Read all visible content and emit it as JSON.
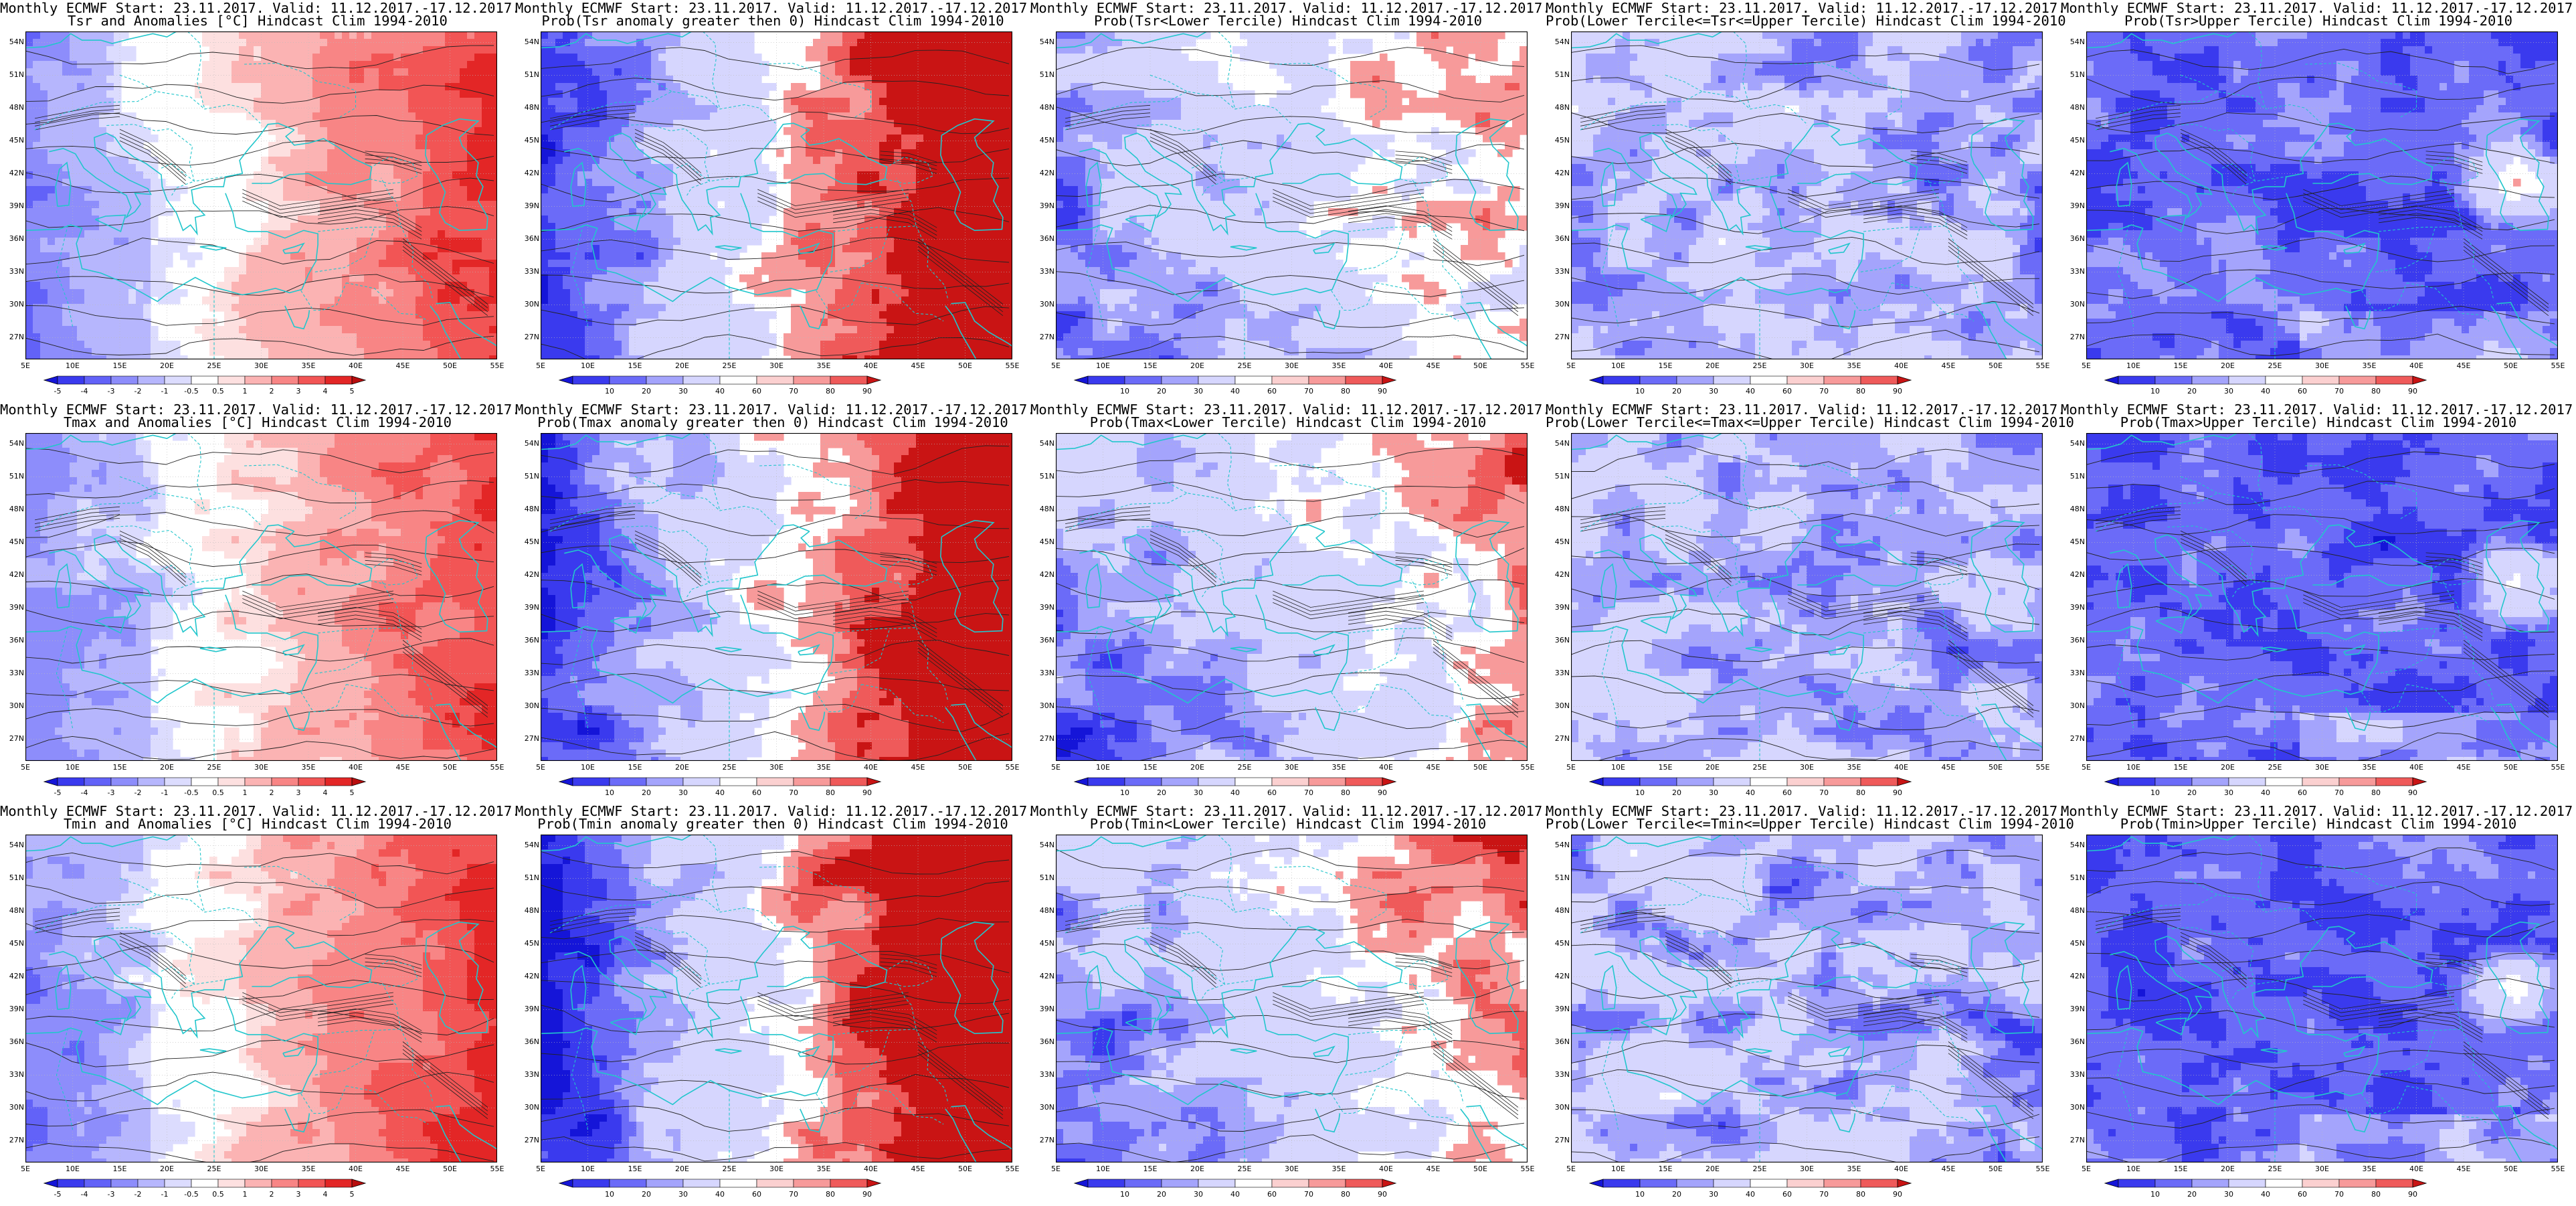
{
  "lat_labels": [
    "54N",
    "51N",
    "48N",
    "45N",
    "42N",
    "39N",
    "36N",
    "33N",
    "30N",
    "27N"
  ],
  "lon_labels": [
    "5E",
    "10E",
    "15E",
    "20E",
    "25E",
    "30E",
    "35E",
    "40E",
    "45E",
    "50E",
    "55E"
  ],
  "colorbars": {
    "anomaly": {
      "labels": [
        "-5",
        "-4",
        "-3",
        "-2",
        "-1",
        "-0.5",
        "0.5",
        "1",
        "2",
        "3",
        "4",
        "5"
      ],
      "colors": [
        "#1515d8",
        "#3a3aee",
        "#6262f8",
        "#8d8dfb",
        "#b6b6fd",
        "#dcdcfe",
        "#ffffff",
        "#fde0e0",
        "#fbb3b3",
        "#f88585",
        "#f25555",
        "#e32626",
        "#b80e0e"
      ]
    },
    "probability": {
      "labels": [
        "10",
        "20",
        "30",
        "40",
        "60",
        "70",
        "80",
        "90"
      ],
      "colors": [
        "#1515d8",
        "#3a3aee",
        "#6b6bf8",
        "#a4a4fc",
        "#d6d6fe",
        "#ffffff",
        "#fbd0d0",
        "#f79a9a",
        "#ef5a5a",
        "#c91414"
      ]
    }
  },
  "panels": [
    {
      "row": 0,
      "col": 0,
      "title1": "Monthly ECMWF Start: 23.11.2017. Valid: 11.12.2017.-17.12.2017.",
      "title2": "Tsr and Anomalies [°C] Hindcast Clim 1994-2010",
      "scheme": "anom",
      "intensity": 0.9,
      "colorbar": "anomaly"
    },
    {
      "row": 0,
      "col": 1,
      "title1": "Monthly ECMWF Start: 23.11.2017. Valid: 11.12.2017.-17.12.2017.",
      "title2": "Prob(Tsr anomaly greater then 0) Hindcast Clim 1994-2010",
      "scheme": "probpos",
      "intensity": 1.0,
      "colorbar": "probability"
    },
    {
      "row": 0,
      "col": 2,
      "title1": "Monthly ECMWF Start: 23.11.2017. Valid: 11.12.2017.-17.12.2017.",
      "title2": "Prob(Tsr<Lower Tercile) Hindcast Clim 1994-2010",
      "scheme": "lower",
      "intensity": 1.0,
      "colorbar": "probability"
    },
    {
      "row": 0,
      "col": 3,
      "title1": "Monthly ECMWF Start: 23.11.2017. Valid: 11.12.2017.-17.12.2017.",
      "title2": "Prob(Lower Tercile<=Tsr<=Upper Tercile) Hindcast Clim 1994-2010",
      "scheme": "middle",
      "intensity": 1.0,
      "colorbar": "probability"
    },
    {
      "row": 0,
      "col": 4,
      "title1": "Monthly ECMWF Start: 23.11.2017. Valid: 11.12.2017.-17.12.2017.",
      "title2": "Prob(Tsr>Upper Tercile) Hindcast Clim 1994-2010",
      "scheme": "upper",
      "intensity": 1.0,
      "colorbar": "probability"
    },
    {
      "row": 1,
      "col": 0,
      "title1": "Monthly ECMWF Start: 23.11.2017. Valid: 11.12.2017.-17.12.2017.",
      "title2": "Tmax and Anomalies [°C] Hindcast Clim 1994-2010",
      "scheme": "anom",
      "intensity": 0.85,
      "colorbar": "anomaly"
    },
    {
      "row": 1,
      "col": 1,
      "title1": "Monthly ECMWF Start: 23.11.2017. Valid: 11.12.2017.-17.12.2017.",
      "title2": "Prob(Tmax anomaly greater then 0) Hindcast Clim 1994-2010",
      "scheme": "probpos",
      "intensity": 0.95,
      "colorbar": "probability"
    },
    {
      "row": 1,
      "col": 2,
      "title1": "Monthly ECMWF Start: 23.11.2017. Valid: 11.12.2017.-17.12.2017.",
      "title2": "Prob(Tmax<Lower Tercile) Hindcast Clim 1994-2010",
      "scheme": "lower",
      "intensity": 1.05,
      "colorbar": "probability"
    },
    {
      "row": 1,
      "col": 3,
      "title1": "Monthly ECMWF Start: 23.11.2017. Valid: 11.12.2017.-17.12.2017.",
      "title2": "Prob(Lower Tercile<=Tmax<=Upper Tercile) Hindcast Clim 1994-2010",
      "scheme": "middle",
      "intensity": 0.9,
      "colorbar": "probability"
    },
    {
      "row": 1,
      "col": 4,
      "title1": "Monthly ECMWF Start: 23.11.2017. Valid: 11.12.2017.-17.12.2017.",
      "title2": "Prob(Tmax>Upper Tercile) Hindcast Clim 1994-2010",
      "scheme": "upper",
      "intensity": 0.9,
      "colorbar": "probability"
    },
    {
      "row": 2,
      "col": 0,
      "title1": "Monthly ECMWF Start: 23.11.2017. Valid: 11.12.2017.-17.12.2017.",
      "title2": "Tmin and Anomalies [°C] Hindcast Clim 1994-2010",
      "scheme": "anom",
      "intensity": 1.0,
      "colorbar": "anomaly"
    },
    {
      "row": 2,
      "col": 1,
      "title1": "Monthly ECMWF Start: 23.11.2017. Valid: 11.12.2017.-17.12.2017.",
      "title2": "Prob(Tmin anomaly greater then 0) Hindcast Clim 1994-2010",
      "scheme": "probpos",
      "intensity": 1.05,
      "colorbar": "probability"
    },
    {
      "row": 2,
      "col": 2,
      "title1": "Monthly ECMWF Start: 23.11.2017. Valid: 11.12.2017.-17.12.2017.",
      "title2": "Prob(Tmin<Lower Tercile) Hindcast Clim 1994-2010",
      "scheme": "lower",
      "intensity": 1.1,
      "colorbar": "probability"
    },
    {
      "row": 2,
      "col": 3,
      "title1": "Monthly ECMWF Start: 23.11.2017. Valid: 11.12.2017.-17.12.2017.",
      "title2": "Prob(Lower Tercile<=Tmin<=Upper Tercile) Hindcast Clim 1994-2010",
      "scheme": "middle",
      "intensity": 1.1,
      "colorbar": "probability"
    },
    {
      "row": 2,
      "col": 4,
      "title1": "Monthly ECMWF Start: 23.11.2017. Valid: 11.12.2017.-17.12.2017.",
      "title2": "Prob(Tmin>Upper Tercile) Hindcast Clim 1994-2010",
      "scheme": "upper",
      "intensity": 0.95,
      "colorbar": "probability"
    }
  ]
}
